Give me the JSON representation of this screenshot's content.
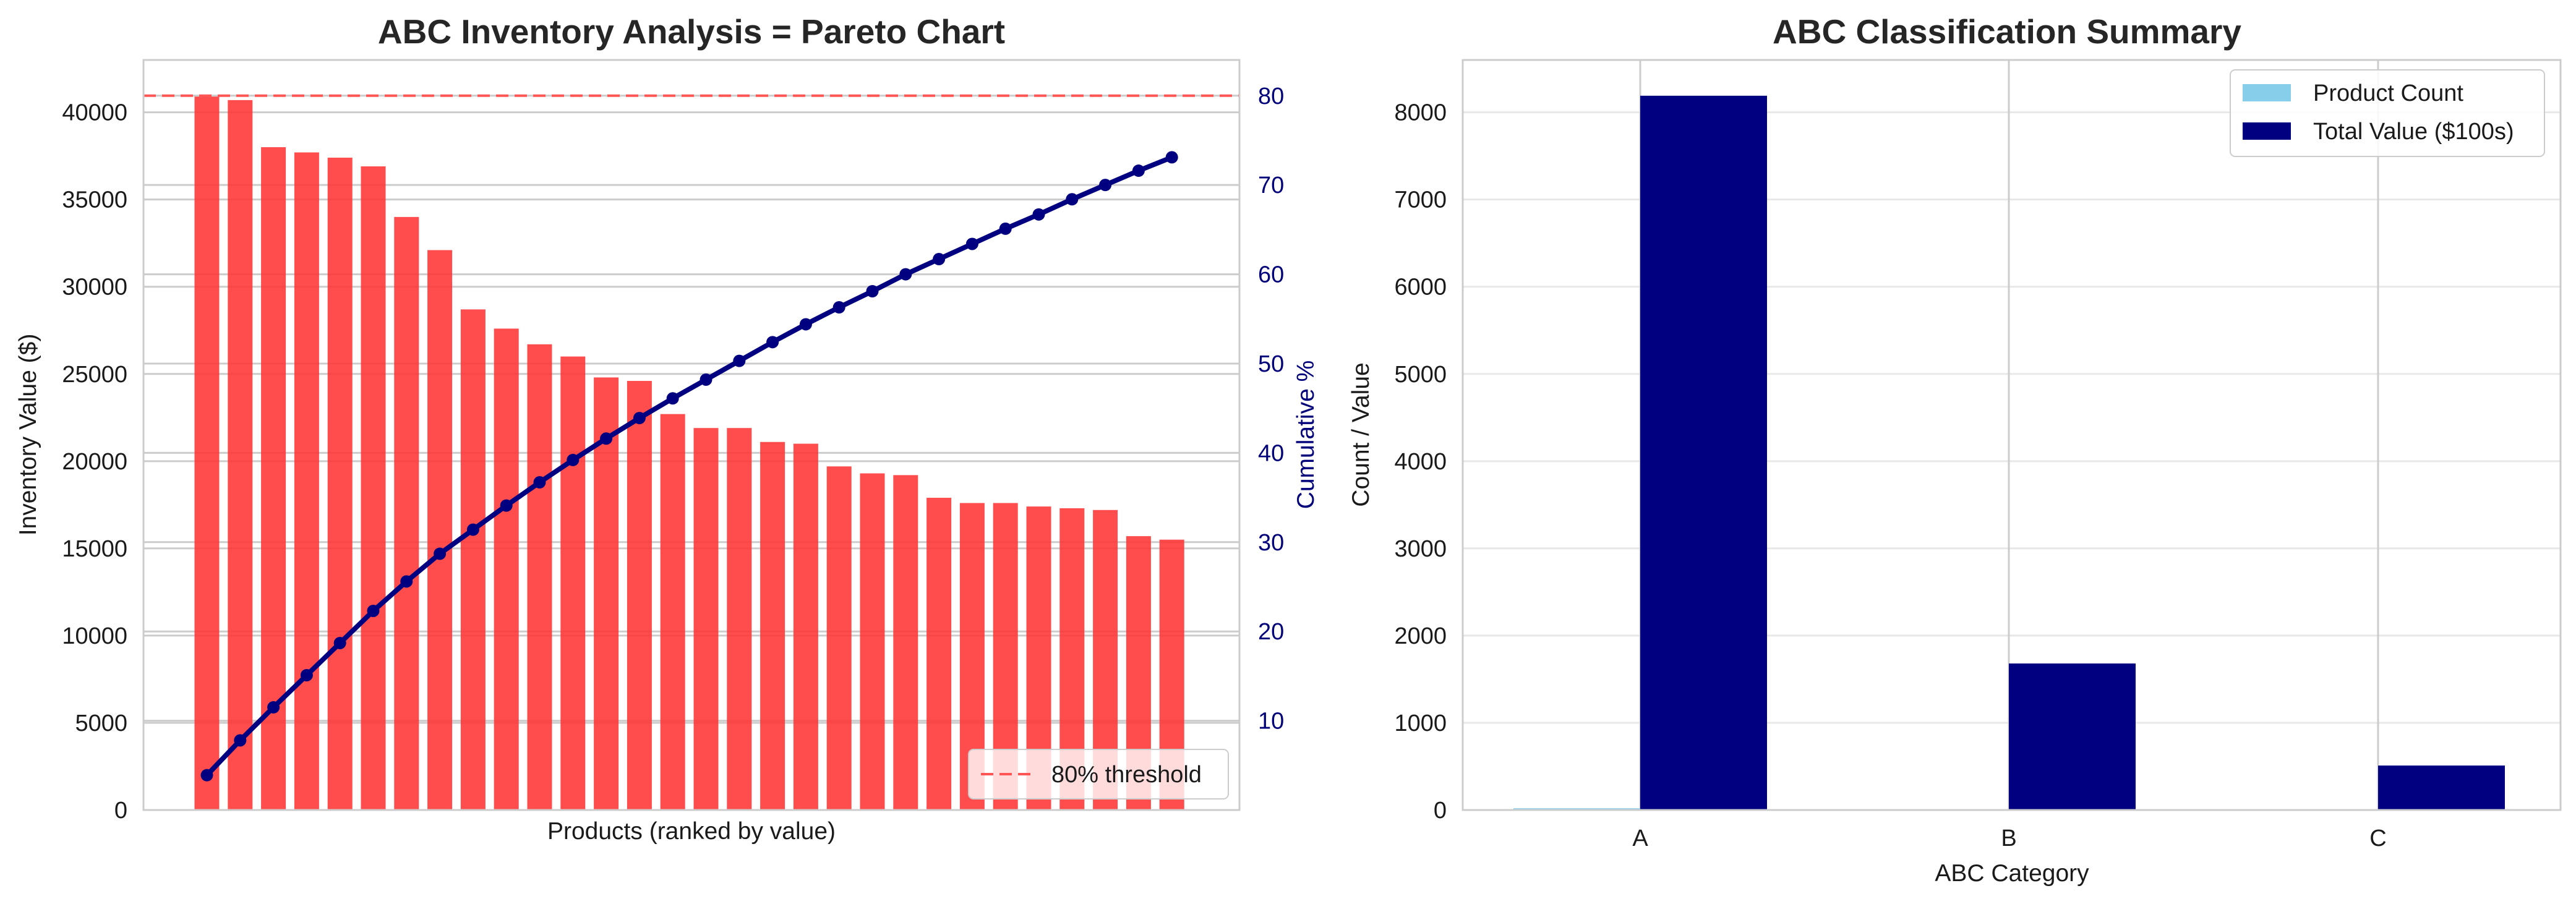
{
  "colors": {
    "bar_red": "#ff3333",
    "cumulative_line": "#000080",
    "threshold_line": "#ff5555",
    "product_count": "#87ceeb",
    "total_value": "#000080",
    "grid": "#cccccc"
  },
  "chart_data": [
    {
      "type": "bar",
      "title": "ABC Inventory Analysis = Pareto Chart",
      "xlabel": "Products (ranked by value)",
      "ylabel": "Inventory Value ($)",
      "y2label": "Cumulative %",
      "ylim": [
        0,
        43000
      ],
      "y2lim": [
        0,
        84
      ],
      "yticks": [
        0,
        5000,
        10000,
        15000,
        20000,
        25000,
        30000,
        35000,
        40000
      ],
      "y2ticks": [
        10,
        20,
        30,
        40,
        50,
        60,
        70,
        80
      ],
      "grid": true,
      "values": [
        40900,
        40700,
        38000,
        37700,
        37400,
        36900,
        34000,
        32100,
        28700,
        27600,
        26700,
        26000,
        24800,
        24600,
        22700,
        21900,
        21900,
        21100,
        21000,
        19700,
        19300,
        19200,
        17900,
        17600,
        17600,
        17400,
        17300,
        17200,
        15700,
        15500
      ],
      "cumulative": [
        3.9,
        7.8,
        11.5,
        15.1,
        18.7,
        22.3,
        25.6,
        28.7,
        31.4,
        34.1,
        36.7,
        39.2,
        41.6,
        43.9,
        46.1,
        48.2,
        50.3,
        52.4,
        54.4,
        56.3,
        58.1,
        60.0,
        61.7,
        63.4,
        65.1,
        66.7,
        68.4,
        70.0,
        71.6,
        73.1
      ],
      "threshold": {
        "label": "80% threshold",
        "value": 80
      },
      "legend_position": "lower-right"
    },
    {
      "type": "bar",
      "title": "ABC Classification Summary",
      "xlabel": "ABC Category",
      "ylabel": "Count / Value",
      "categories": [
        "A",
        "B",
        "C"
      ],
      "ylim": [
        0,
        8600
      ],
      "yticks": [
        0,
        1000,
        2000,
        3000,
        4000,
        5000,
        6000,
        7000,
        8000
      ],
      "grid": true,
      "series": [
        {
          "name": "Product Count",
          "values": [
            20,
            5,
            5
          ]
        },
        {
          "name": "Total Value ($100s)",
          "values": [
            8190,
            1680,
            510
          ]
        }
      ],
      "legend_position": "upper-right"
    }
  ]
}
